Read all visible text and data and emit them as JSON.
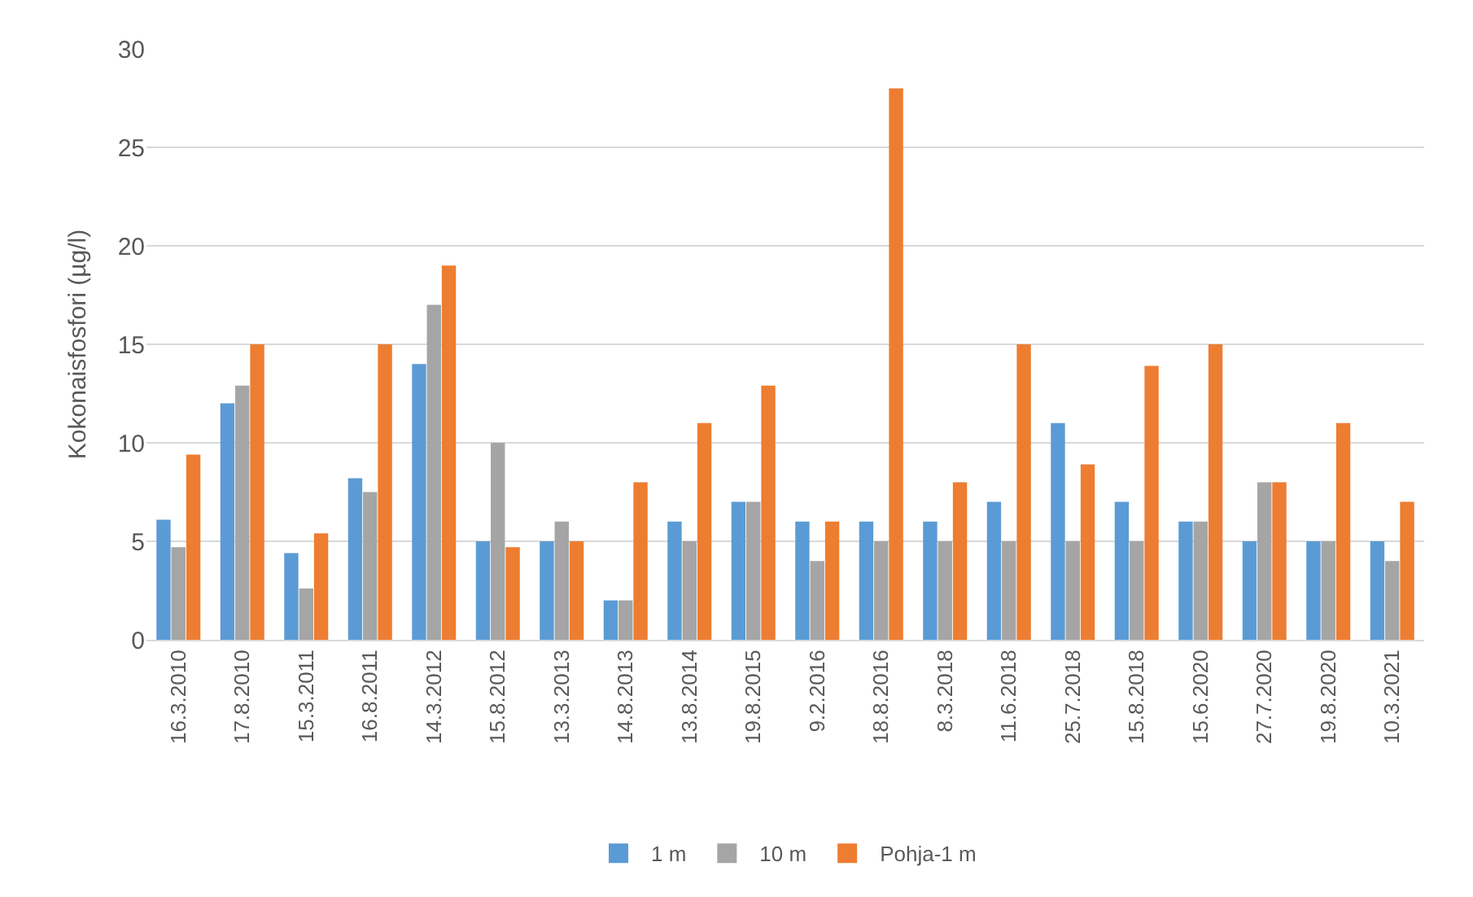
{
  "chart_data": {
    "type": "bar",
    "ylabel": "Kokonaisfosfori (µg/l)",
    "categories": [
      "16.3.2010",
      "17.8.2010",
      "15.3.2011",
      "16.8.2011",
      "14.3.2012",
      "15.8.2012",
      "13.3.2013",
      "14.8.2013",
      "13.8.2014",
      "19.8.2015",
      "9.2.2016",
      "18.8.2016",
      "8.3.2018",
      "11.6.2018",
      "25.7.2018",
      "15.8.2018",
      "15.6.2020",
      "27.7.2020",
      "19.8.2020",
      "10.3.2021"
    ],
    "series": [
      {
        "name": "1 m",
        "color": "#5b9bd5",
        "values": [
          6.1,
          12,
          4.4,
          8.2,
          14,
          5,
          5,
          2,
          6,
          7,
          6,
          6,
          6,
          7,
          11,
          7,
          6,
          5,
          5,
          5
        ]
      },
      {
        "name": "10 m",
        "color": "#a5a5a5",
        "values": [
          4.7,
          12.9,
          2.6,
          7.5,
          17,
          10,
          6,
          2,
          5,
          7,
          4,
          5,
          5,
          5,
          5,
          5,
          6,
          8,
          5,
          4
        ]
      },
      {
        "name": "Pohja-1 m",
        "color": "#ed7d31",
        "values": [
          9.4,
          15,
          5.4,
          15,
          19,
          4.7,
          5,
          8,
          11,
          12.9,
          6,
          28,
          8,
          15,
          8.9,
          13.9,
          15,
          8,
          11,
          7
        ]
      }
    ],
    "ylim": [
      0,
      30
    ],
    "yticks": [
      0,
      5,
      10,
      15,
      20,
      25,
      30
    ],
    "grid": "y",
    "legend": "bottom"
  }
}
